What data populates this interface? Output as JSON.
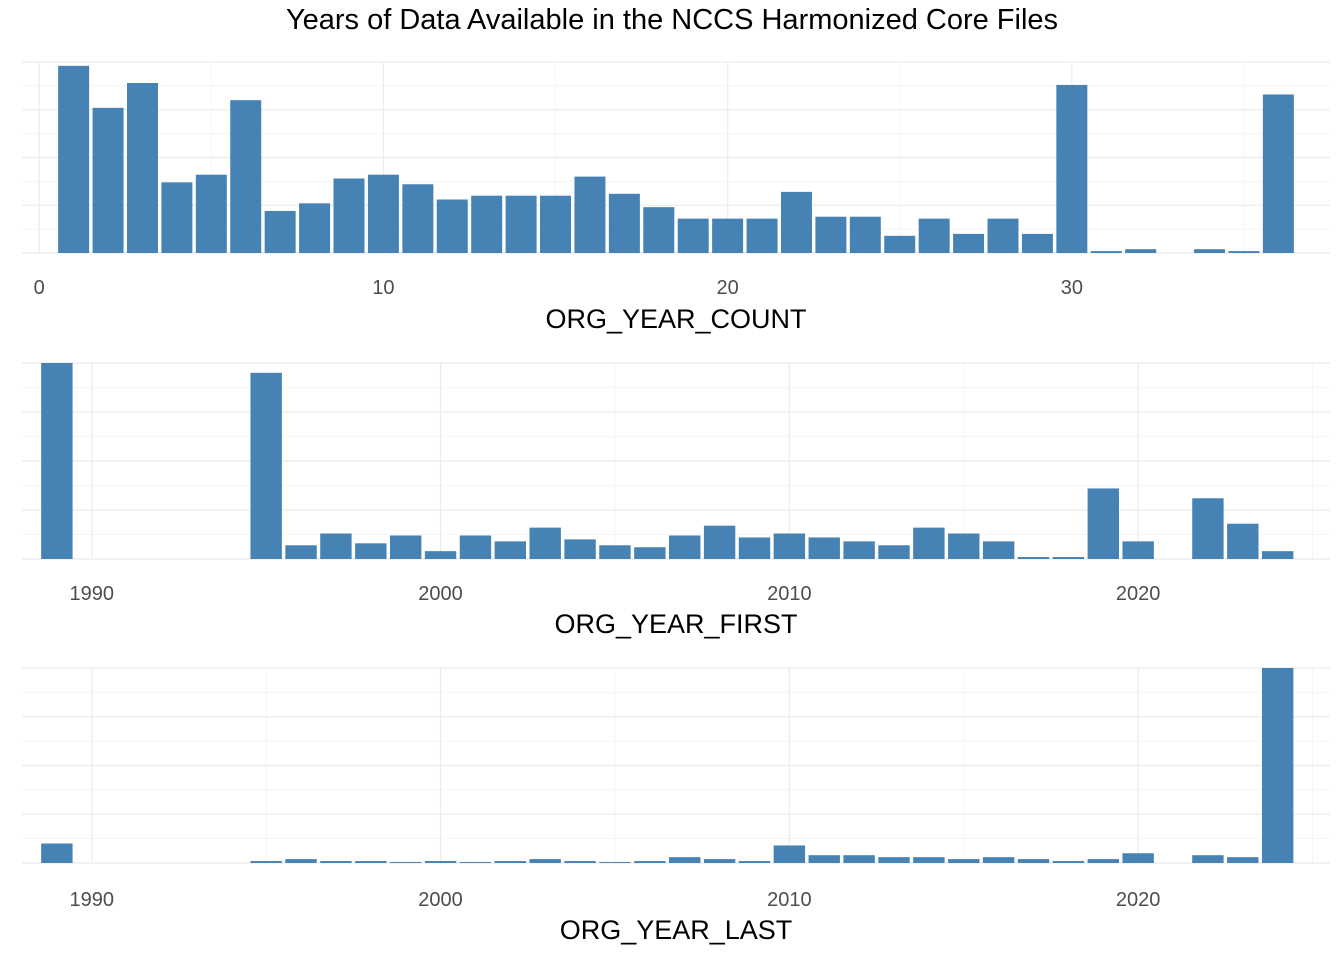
{
  "title": "Years of Data Available in the NCCS Harmonized Core Files",
  "colors": {
    "bar": "#4682b4",
    "grid_major": "#ebebeb",
    "grid_minor": "#f2f2f2",
    "tick_text": "#4d4d4d"
  },
  "chart_data": [
    {
      "type": "bar",
      "xlabel": "ORG_YEAR_COUNT",
      "ylabel": "",
      "x_ticks": [
        0,
        10,
        20,
        30
      ],
      "xlim": [
        -0.5,
        37.5
      ],
      "y_ticks_shown": false,
      "ylim": [
        0,
        100
      ],
      "grid": true,
      "x": [
        1,
        2,
        3,
        4,
        5,
        6,
        7,
        8,
        9,
        10,
        11,
        12,
        13,
        14,
        15,
        16,
        17,
        18,
        19,
        20,
        21,
        22,
        23,
        24,
        25,
        26,
        27,
        28,
        29,
        30,
        31,
        32,
        33,
        34,
        35,
        36
      ],
      "values": [
        98,
        76,
        89,
        37,
        41,
        80,
        22,
        26,
        39,
        41,
        36,
        28,
        30,
        30,
        30,
        40,
        31,
        24,
        18,
        18,
        18,
        32,
        19,
        19,
        9,
        18,
        10,
        18,
        10,
        88,
        1,
        2,
        0,
        2,
        1,
        83
      ]
    },
    {
      "type": "bar",
      "xlabel": "ORG_YEAR_FIRST",
      "ylabel": "",
      "x_ticks": [
        1990,
        2000,
        2010,
        2020
      ],
      "xlim": [
        1988.0,
        2025.5
      ],
      "y_ticks_shown": false,
      "ylim": [
        0,
        100
      ],
      "grid": true,
      "x": [
        1989,
        1990,
        1991,
        1992,
        1993,
        1994,
        1995,
        1996,
        1997,
        1998,
        1999,
        2000,
        2001,
        2002,
        2003,
        2004,
        2005,
        2006,
        2007,
        2008,
        2009,
        2010,
        2011,
        2012,
        2013,
        2014,
        2015,
        2016,
        2017,
        2018,
        2019,
        2020,
        2021,
        2022,
        2023,
        2024
      ],
      "values": [
        100,
        0,
        0,
        0,
        0,
        0,
        95,
        7,
        13,
        8,
        12,
        4,
        12,
        9,
        16,
        10,
        7,
        6,
        12,
        17,
        11,
        13,
        11,
        9,
        7,
        16,
        13,
        9,
        1,
        1,
        36,
        9,
        0,
        31,
        18,
        4
      ]
    },
    {
      "type": "bar",
      "xlabel": "ORG_YEAR_LAST",
      "ylabel": "",
      "x_ticks": [
        1990,
        2000,
        2010,
        2020
      ],
      "xlim": [
        1988.0,
        2025.5
      ],
      "y_ticks_shown": false,
      "ylim": [
        0,
        100
      ],
      "grid": true,
      "x": [
        1989,
        1990,
        1991,
        1992,
        1993,
        1994,
        1995,
        1996,
        1997,
        1998,
        1999,
        2000,
        2001,
        2002,
        2003,
        2004,
        2005,
        2006,
        2007,
        2008,
        2009,
        2010,
        2011,
        2012,
        2013,
        2014,
        2015,
        2016,
        2017,
        2018,
        2019,
        2020,
        2021,
        2022,
        2023,
        2024
      ],
      "values": [
        10,
        0,
        0,
        0,
        0,
        0,
        1,
        2,
        1,
        1,
        0.5,
        1,
        0.5,
        1,
        2,
        1,
        0.5,
        1,
        3,
        2,
        1,
        9,
        4,
        4,
        3,
        3,
        2,
        3,
        2,
        1,
        2,
        5,
        0,
        4,
        3,
        100
      ]
    }
  ]
}
